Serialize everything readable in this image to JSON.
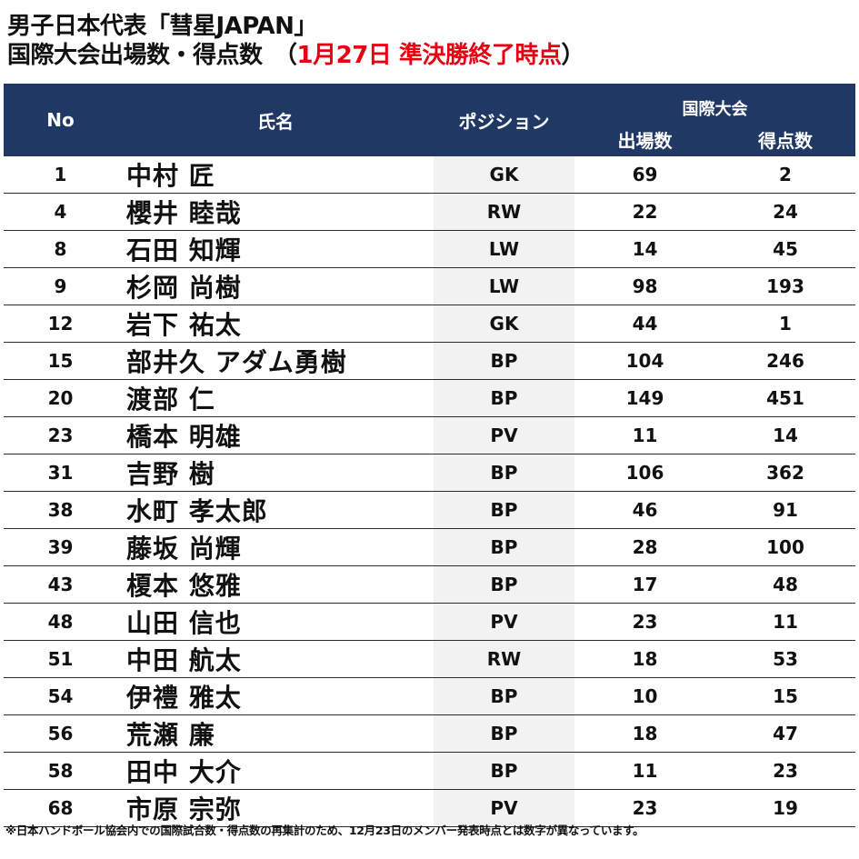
{
  "title": {
    "line1": "男子日本代表「彗星JAPAN」",
    "line2_prefix": "国際大会出場数・得点数　（",
    "line2_highlight": "1月27日 準決勝終了時点",
    "line2_suffix": "）"
  },
  "table": {
    "headers": {
      "no": "No",
      "name": "氏名",
      "position": "ポジション",
      "competition": "国際大会",
      "appearances": "出場数",
      "goals": "得点数"
    },
    "rows": [
      {
        "no": "1",
        "name": "中村 匠",
        "position": "GK",
        "appearances": "69",
        "goals": "2"
      },
      {
        "no": "4",
        "name": "櫻井 睦哉",
        "position": "RW",
        "appearances": "22",
        "goals": "24"
      },
      {
        "no": "8",
        "name": "石田 知輝",
        "position": "LW",
        "appearances": "14",
        "goals": "45"
      },
      {
        "no": "9",
        "name": "杉岡 尚樹",
        "position": "LW",
        "appearances": "98",
        "goals": "193"
      },
      {
        "no": "12",
        "name": "岩下 祐太",
        "position": "GK",
        "appearances": "44",
        "goals": "1"
      },
      {
        "no": "15",
        "name": "部井久 アダム勇樹",
        "position": "BP",
        "appearances": "104",
        "goals": "246"
      },
      {
        "no": "20",
        "name": "渡部 仁",
        "position": "BP",
        "appearances": "149",
        "goals": "451"
      },
      {
        "no": "23",
        "name": "橋本 明雄",
        "position": "PV",
        "appearances": "11",
        "goals": "14"
      },
      {
        "no": "31",
        "name": "吉野 樹",
        "position": "BP",
        "appearances": "106",
        "goals": "362"
      },
      {
        "no": "38",
        "name": "水町 孝太郎",
        "position": "BP",
        "appearances": "46",
        "goals": "91"
      },
      {
        "no": "39",
        "name": "藤坂 尚輝",
        "position": "BP",
        "appearances": "28",
        "goals": "100"
      },
      {
        "no": "43",
        "name": "榎本 悠雅",
        "position": "BP",
        "appearances": "17",
        "goals": "48"
      },
      {
        "no": "48",
        "name": "山田 信也",
        "position": "PV",
        "appearances": "23",
        "goals": "11"
      },
      {
        "no": "51",
        "name": "中田 航太",
        "position": "RW",
        "appearances": "18",
        "goals": "53"
      },
      {
        "no": "54",
        "name": "伊禮 雅太",
        "position": "BP",
        "appearances": "10",
        "goals": "15"
      },
      {
        "no": "56",
        "name": "荒瀬 廉",
        "position": "BP",
        "appearances": "18",
        "goals": "47"
      },
      {
        "no": "58",
        "name": "田中 大介",
        "position": "BP",
        "appearances": "11",
        "goals": "23"
      },
      {
        "no": "68",
        "name": "市原 宗弥",
        "position": "PV",
        "appearances": "23",
        "goals": "19"
      }
    ]
  },
  "footnote": "※日本ハンドボール協会内での国際試合数・得点数の再集計のため、12月23日のメンバー発表時点とは数字が異なっています。",
  "colors": {
    "header_bg": "#1f3864",
    "header_text": "#ffffff",
    "highlight_red": "#e60012",
    "position_col_bg": "#f2f2f2"
  }
}
